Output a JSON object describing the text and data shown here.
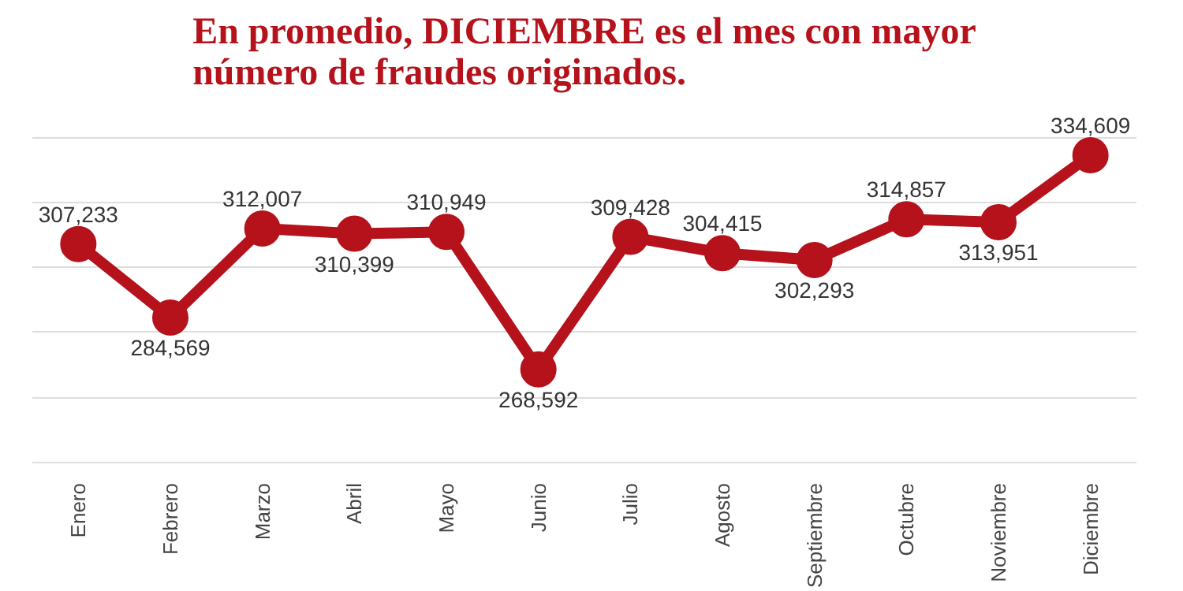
{
  "chart_data": {
    "type": "line",
    "title": "En promedio, DICIEMBRE es el mes con mayor\nnúmero de fraudes originados.",
    "categories": [
      "Enero",
      "Febrero",
      "Marzo",
      "Abril",
      "Mayo",
      "Junio",
      "Julio",
      "Agosto",
      "Septiembre",
      "Octubre",
      "Noviembre",
      "Diciembre"
    ],
    "series": [
      {
        "color": "#b5121b",
        "values": [
          307233,
          284569,
          312007,
          310399,
          310949,
          268592,
          309428,
          304415,
          302293,
          314857,
          313951,
          334609
        ],
        "value_labels": [
          "307,233",
          "284,569",
          "312,007",
          "310,399",
          "310,949",
          "268,592",
          "309,428",
          "304,415",
          "302,293",
          "314,857",
          "313,951",
          "334,609"
        ]
      }
    ],
    "marker": "circle",
    "line_style": "solid",
    "grid": "y",
    "tick_labels": "x"
  }
}
